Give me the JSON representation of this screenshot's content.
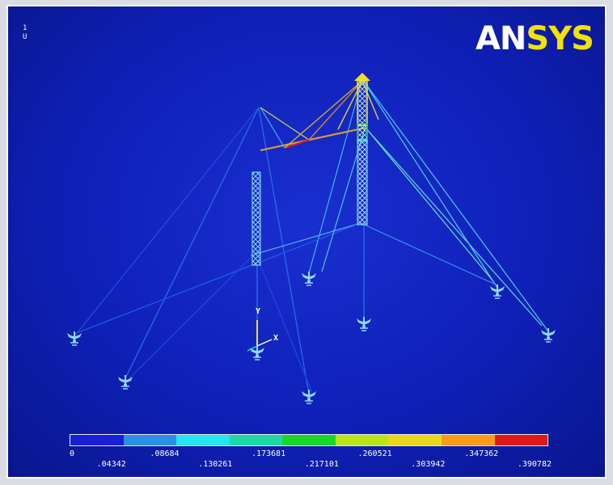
{
  "window": {
    "logo_an": "AN",
    "logo_sys": "SYS",
    "index_lines": [
      "1",
      "U"
    ]
  },
  "axis_triad": {
    "x_label": "X",
    "y_label": "Y"
  },
  "legend": {
    "colors": [
      "#1a1fd8",
      "#2b8fe6",
      "#23e6f0",
      "#1fd8a6",
      "#18d828",
      "#b8e418",
      "#e8d818",
      "#ff9a18",
      "#e01818"
    ],
    "labels": [
      "0",
      ".04342",
      ".08684",
      ".130261",
      ".173681",
      ".217101",
      ".260521",
      ".303942",
      ".347362",
      ".390782"
    ]
  },
  "colors": {
    "background": "#0f20b8",
    "border": "#ffffff",
    "support_symbol": "#8fd8ff"
  }
}
